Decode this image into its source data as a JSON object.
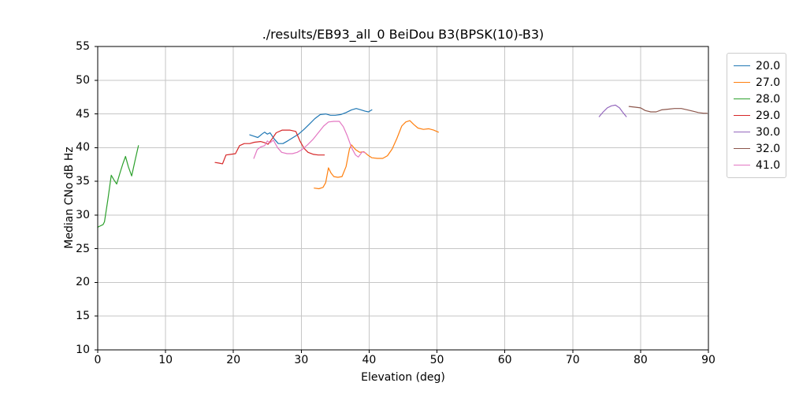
{
  "chart_data": {
    "type": "line",
    "title": "./results/EB93_all_0 BeiDou B3(BPSK(10)-B3)",
    "xlabel": "Elevation (deg)",
    "ylabel": "Median CNo dB Hz",
    "xlim": [
      0,
      90
    ],
    "ylim": [
      10,
      55
    ],
    "xticks": [
      0,
      10,
      20,
      30,
      40,
      50,
      60,
      70,
      80,
      90
    ],
    "yticks": [
      10,
      15,
      20,
      25,
      30,
      35,
      40,
      45,
      50,
      55
    ],
    "grid": true,
    "legend": {
      "position": "outside-right",
      "entries": [
        "20.0",
        "27.0",
        "28.0",
        "29.0",
        "30.0",
        "32.0",
        "41.0"
      ]
    },
    "series": [
      {
        "name": "20.0",
        "color": "#1f77b4",
        "points": [
          [
            22.4,
            41.9
          ],
          [
            23.0,
            41.7
          ],
          [
            23.6,
            41.5
          ],
          [
            24.2,
            42.0
          ],
          [
            24.6,
            42.3
          ],
          [
            25.0,
            42.0
          ],
          [
            25.4,
            42.2
          ],
          [
            26.0,
            41.3
          ],
          [
            26.6,
            40.6
          ],
          [
            27.3,
            40.6
          ],
          [
            28.0,
            41.0
          ],
          [
            28.8,
            41.5
          ],
          [
            29.6,
            42.0
          ],
          [
            30.4,
            42.7
          ],
          [
            31.2,
            43.5
          ],
          [
            32.0,
            44.3
          ],
          [
            32.8,
            44.9
          ],
          [
            33.6,
            45.0
          ],
          [
            34.3,
            44.8
          ],
          [
            35.0,
            44.8
          ],
          [
            35.8,
            44.9
          ],
          [
            36.6,
            45.2
          ],
          [
            37.4,
            45.6
          ],
          [
            38.1,
            45.8
          ],
          [
            38.8,
            45.6
          ],
          [
            39.4,
            45.4
          ],
          [
            39.9,
            45.3
          ],
          [
            40.4,
            45.6
          ]
        ]
      },
      {
        "name": "27.0",
        "color": "#ff7f0e",
        "points": [
          [
            31.9,
            34.0
          ],
          [
            32.6,
            33.9
          ],
          [
            33.2,
            34.1
          ],
          [
            33.6,
            34.8
          ],
          [
            34.0,
            37.0
          ],
          [
            34.4,
            36.2
          ],
          [
            34.8,
            35.7
          ],
          [
            35.4,
            35.6
          ],
          [
            36.0,
            35.7
          ],
          [
            36.6,
            37.2
          ],
          [
            37.1,
            39.8
          ],
          [
            37.4,
            40.4
          ],
          [
            38.0,
            39.7
          ],
          [
            38.6,
            39.3
          ],
          [
            39.2,
            39.4
          ],
          [
            39.8,
            38.9
          ],
          [
            40.4,
            38.5
          ],
          [
            41.2,
            38.4
          ],
          [
            42.0,
            38.4
          ],
          [
            42.7,
            38.8
          ],
          [
            43.4,
            39.8
          ],
          [
            44.1,
            41.4
          ],
          [
            44.8,
            43.2
          ],
          [
            45.4,
            43.8
          ],
          [
            46.0,
            44.0
          ],
          [
            46.6,
            43.4
          ],
          [
            47.2,
            42.9
          ],
          [
            48.0,
            42.7
          ],
          [
            48.8,
            42.8
          ],
          [
            49.5,
            42.6
          ],
          [
            50.2,
            42.3
          ]
        ]
      },
      {
        "name": "28.0",
        "color": "#2ca02c",
        "points": [
          [
            0.0,
            28.2
          ],
          [
            0.4,
            28.4
          ],
          [
            0.8,
            28.6
          ],
          [
            1.0,
            29.0
          ],
          [
            1.5,
            32.3
          ],
          [
            2.0,
            35.9
          ],
          [
            2.4,
            35.2
          ],
          [
            2.8,
            34.6
          ],
          [
            3.3,
            36.3
          ],
          [
            3.7,
            37.6
          ],
          [
            4.1,
            38.7
          ],
          [
            4.5,
            37.2
          ],
          [
            5.0,
            35.8
          ],
          [
            5.5,
            38.1
          ],
          [
            6.0,
            40.3
          ]
        ]
      },
      {
        "name": "29.0",
        "color": "#d62728",
        "points": [
          [
            17.3,
            37.8
          ],
          [
            17.9,
            37.7
          ],
          [
            18.4,
            37.6
          ],
          [
            18.9,
            38.9
          ],
          [
            19.6,
            39.0
          ],
          [
            20.3,
            39.1
          ],
          [
            20.9,
            40.3
          ],
          [
            21.6,
            40.6
          ],
          [
            22.4,
            40.6
          ],
          [
            23.1,
            40.8
          ],
          [
            24.0,
            40.9
          ],
          [
            24.7,
            40.7
          ],
          [
            25.1,
            40.5
          ],
          [
            25.7,
            41.3
          ],
          [
            26.3,
            42.2
          ],
          [
            27.2,
            42.6
          ],
          [
            28.3,
            42.6
          ],
          [
            29.2,
            42.4
          ],
          [
            29.8,
            41.0
          ],
          [
            30.4,
            39.9
          ],
          [
            31.0,
            39.3
          ],
          [
            31.8,
            39.0
          ],
          [
            32.5,
            38.9
          ],
          [
            33.4,
            38.9
          ]
        ]
      },
      {
        "name": "30.0",
        "color": "#9467bd",
        "points": [
          [
            73.9,
            44.6
          ],
          [
            74.5,
            45.3
          ],
          [
            75.1,
            45.9
          ],
          [
            75.7,
            46.2
          ],
          [
            76.3,
            46.3
          ],
          [
            76.9,
            45.9
          ],
          [
            77.4,
            45.2
          ],
          [
            77.9,
            44.6
          ]
        ]
      },
      {
        "name": "32.0",
        "color": "#8c564b",
        "points": [
          [
            78.3,
            46.1
          ],
          [
            79.2,
            46.0
          ],
          [
            80.0,
            45.9
          ],
          [
            80.7,
            45.5
          ],
          [
            81.5,
            45.3
          ],
          [
            82.3,
            45.3
          ],
          [
            83.1,
            45.6
          ],
          [
            84.0,
            45.7
          ],
          [
            85.0,
            45.8
          ],
          [
            86.0,
            45.8
          ],
          [
            86.9,
            45.6
          ],
          [
            87.7,
            45.4
          ],
          [
            88.5,
            45.2
          ],
          [
            89.3,
            45.1
          ],
          [
            89.8,
            45.1
          ]
        ]
      },
      {
        "name": "41.0",
        "color": "#e377c2",
        "points": [
          [
            23.0,
            38.4
          ],
          [
            23.5,
            39.7
          ],
          [
            24.0,
            40.1
          ],
          [
            24.6,
            40.3
          ],
          [
            25.0,
            41.0
          ],
          [
            25.4,
            40.7
          ],
          [
            25.9,
            41.1
          ],
          [
            26.5,
            40.0
          ],
          [
            27.1,
            39.3
          ],
          [
            27.9,
            39.1
          ],
          [
            28.7,
            39.1
          ],
          [
            29.4,
            39.3
          ],
          [
            30.1,
            39.7
          ],
          [
            30.9,
            40.4
          ],
          [
            31.7,
            41.2
          ],
          [
            32.5,
            42.2
          ],
          [
            33.3,
            43.2
          ],
          [
            34.0,
            43.8
          ],
          [
            34.8,
            43.9
          ],
          [
            35.6,
            43.9
          ],
          [
            36.2,
            43.1
          ],
          [
            36.8,
            41.7
          ],
          [
            37.4,
            40.0
          ],
          [
            38.0,
            38.9
          ],
          [
            38.4,
            38.6
          ],
          [
            39.0,
            39.4
          ],
          [
            39.5,
            39.2
          ]
        ]
      }
    ]
  },
  "colors": {
    "background": "#ffffff",
    "grid": "#c6c6c6",
    "spine": "#000000",
    "text": "#000000",
    "legend_border": "#cccccc"
  }
}
